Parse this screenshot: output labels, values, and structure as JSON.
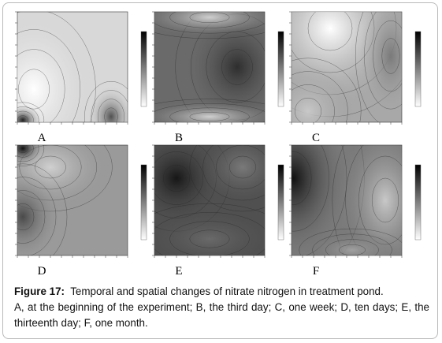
{
  "figure": {
    "panels": [
      {
        "label": "A"
      },
      {
        "label": "B"
      },
      {
        "label": "C"
      },
      {
        "label": "D"
      },
      {
        "label": "E"
      },
      {
        "label": "F"
      }
    ],
    "caption": {
      "label": "Figure 17:",
      "title": "Temporal and spatial changes of nitrate nitrogen in treatment pond.",
      "description": "A, at the beginning of the experiment; B, the third day; C, one week; D, ten days; E, the thirteenth day; F, one month."
    }
  }
}
